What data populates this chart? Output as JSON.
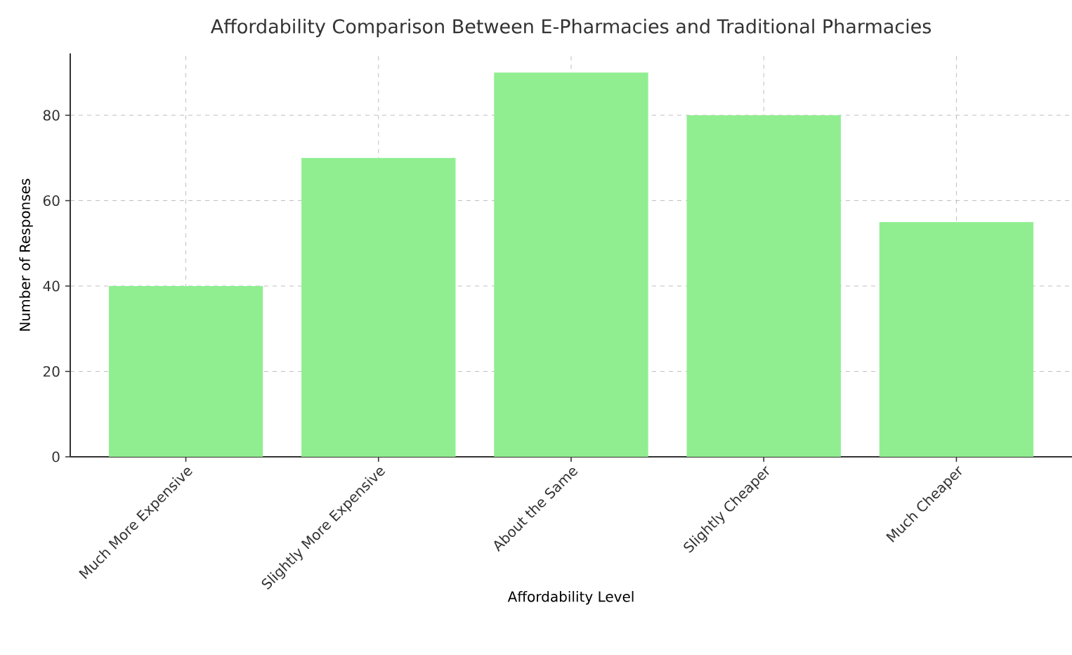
{
  "chart_data": {
    "type": "bar",
    "title": "Affordability Comparison Between E-Pharmacies and Traditional Pharmacies",
    "xlabel": "Affordability Level",
    "ylabel": "Number of Responses",
    "categories": [
      "Much More Expensive",
      "Slightly More Expensive",
      "About the Same",
      "Slightly Cheaper",
      "Much Cheaper"
    ],
    "values": [
      40,
      70,
      90,
      80,
      55
    ],
    "color": "#90ee90",
    "ylim": [
      0,
      94.5
    ],
    "yticks": [
      0,
      20,
      40,
      60,
      80
    ],
    "grid": true
  }
}
